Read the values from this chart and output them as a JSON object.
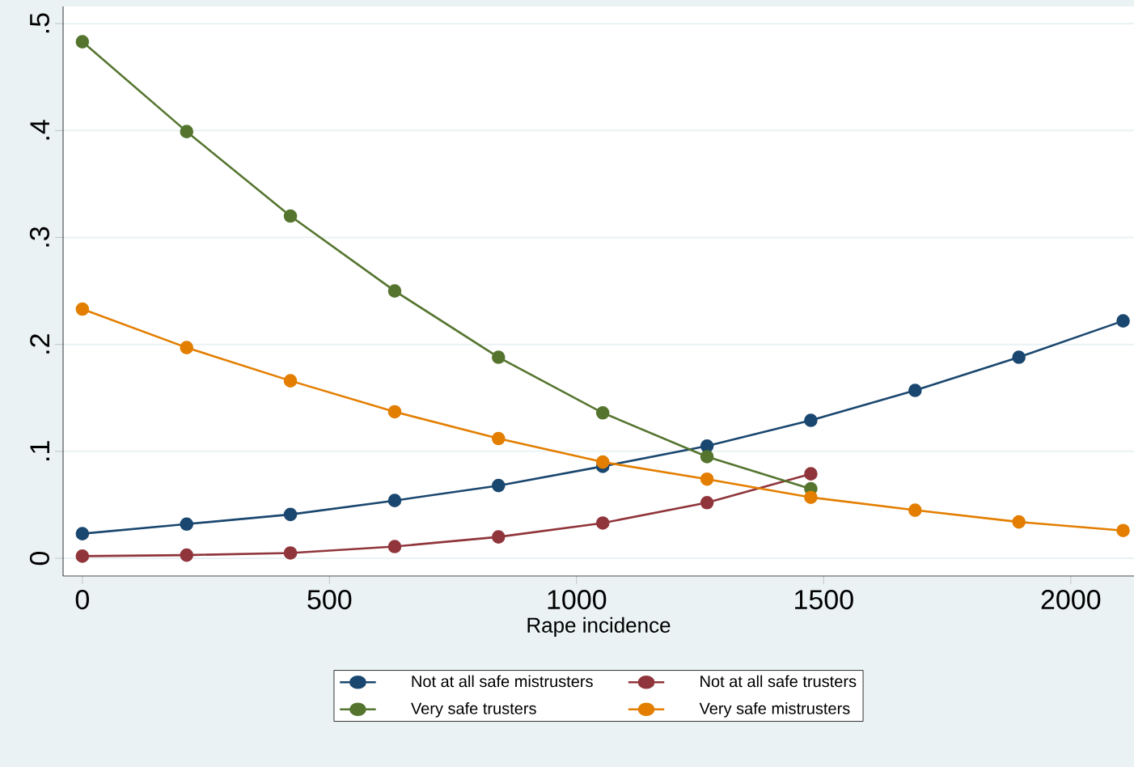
{
  "chart_data": {
    "type": "line",
    "xlabel": "Rape incidence",
    "x": [
      0,
      211,
      421,
      632,
      842,
      1053,
      1264,
      1474,
      1685,
      1895,
      2106
    ],
    "series": [
      {
        "name": "Not at all safe mistrusters",
        "color": "#1a476f",
        "values": [
          0.023,
          0.032,
          0.041,
          0.054,
          0.068,
          0.086,
          0.105,
          0.129,
          0.157,
          0.188,
          0.222
        ]
      },
      {
        "name": "Not at all safe trusters",
        "color": "#90353b",
        "values": [
          0.002,
          0.003,
          0.005,
          0.011,
          0.02,
          0.033,
          0.052,
          0.079,
          null,
          null,
          null
        ]
      },
      {
        "name": "Very safe trusters",
        "color": "#55752f",
        "values": [
          0.483,
          0.399,
          0.32,
          0.25,
          0.188,
          0.136,
          0.095,
          0.065,
          null,
          null,
          null
        ]
      },
      {
        "name": "Very safe mistrusters",
        "color": "#e37e00",
        "values": [
          0.233,
          0.197,
          0.166,
          0.137,
          0.112,
          0.09,
          0.074,
          0.057,
          0.045,
          0.034,
          0.026
        ]
      }
    ],
    "xlim": [
      -39,
      2128
    ],
    "ylim": [
      -0.0166,
      0.516
    ],
    "xticks": [
      0,
      500,
      1000,
      1500,
      2000
    ],
    "yticks": [
      0,
      {
        "value": 0.1,
        "label": ".1"
      },
      {
        "value": 0.2,
        "label": ".2"
      },
      {
        "value": 0.3,
        "label": ".3"
      },
      {
        "value": 0.4,
        "label": ".4"
      },
      {
        "value": 0.5,
        "label": ".5"
      }
    ],
    "grid": "y",
    "legend": "bottom",
    "marker": "circle",
    "line_style": "solid"
  }
}
